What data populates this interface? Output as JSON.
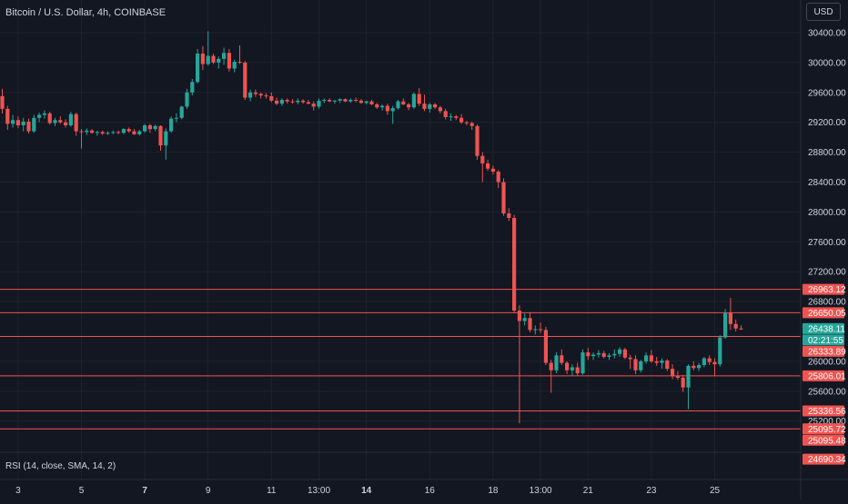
{
  "header": {
    "symbol": "Bitcoin / U.S. Dollar, 4h, COINBASE",
    "currency": "USD"
  },
  "indicator": {
    "label": "RSI (14, close, SMA, 14, 2)"
  },
  "colors": {
    "background": "#131722",
    "grid": "#1e222d",
    "up": "#26a69a",
    "down": "#ef5350",
    "level_line": "#ef5350",
    "current_badge": "#26a69a",
    "axis_text": "#d1d4dc"
  },
  "chart_data": {
    "type": "candlestick",
    "title": "Bitcoin / U.S. Dollar, 4h, COINBASE",
    "y_axis": {
      "ticks": [
        30400,
        30000,
        29600,
        29200,
        28800,
        28400,
        28000,
        27600,
        27200,
        26800,
        26000,
        25600,
        25200
      ],
      "range": [
        24600,
        30700
      ]
    },
    "x_axis": {
      "ticks": [
        {
          "label": "3",
          "index": 3
        },
        {
          "label": "5",
          "index": 15
        },
        {
          "label": "7",
          "index": 27,
          "bold": true
        },
        {
          "label": "9",
          "index": 39
        },
        {
          "label": "11",
          "index": 51
        },
        {
          "label": "13:00",
          "index": 60
        },
        {
          "label": "14",
          "index": 69,
          "bold": true
        },
        {
          "label": "16",
          "index": 81
        },
        {
          "label": "18",
          "index": 93
        },
        {
          "label": "13:00",
          "index": 102
        },
        {
          "label": "21",
          "index": 111
        },
        {
          "label": "23",
          "index": 123
        },
        {
          "label": "25",
          "index": 135
        }
      ]
    },
    "levels": [
      26963.12,
      26650.05,
      26333.89,
      25806.01,
      25336.56,
      25095.72
    ],
    "price_badges": [
      {
        "label": "26963.12",
        "value": 26963.12,
        "kind": "level"
      },
      {
        "label": "26650.05",
        "value": 26650.05,
        "kind": "level"
      },
      {
        "label": "26438.11",
        "value": 26438.11,
        "kind": "current"
      },
      {
        "label": "02:21:55",
        "value": 26438.11,
        "kind": "countdown"
      },
      {
        "label": "26333.89",
        "value": 26333.89,
        "kind": "level"
      },
      {
        "label": "25806.01",
        "value": 25806.01,
        "kind": "level"
      },
      {
        "label": "25336.56",
        "value": 25336.56,
        "kind": "level"
      },
      {
        "label": "25095.72",
        "value": 25095.72,
        "kind": "level"
      },
      {
        "label": "25095.48",
        "value": 25095.48,
        "kind": "level"
      },
      {
        "label": "24690.34",
        "value": 24690.34,
        "kind": "level"
      }
    ],
    "candles": [
      [
        29550,
        29650,
        29320,
        29380
      ],
      [
        29380,
        29420,
        29100,
        29180
      ],
      [
        29180,
        29300,
        29130,
        29230
      ],
      [
        29230,
        29280,
        29120,
        29160
      ],
      [
        29160,
        29260,
        29080,
        29210
      ],
      [
        29210,
        29250,
        29050,
        29080
      ],
      [
        29080,
        29300,
        29060,
        29260
      ],
      [
        29260,
        29330,
        29200,
        29300
      ],
      [
        29300,
        29360,
        29250,
        29320
      ],
      [
        29320,
        29340,
        29170,
        29190
      ],
      [
        29190,
        29260,
        29150,
        29230
      ],
      [
        29230,
        29280,
        29180,
        29200
      ],
      [
        29200,
        29240,
        29130,
        29160
      ],
      [
        29160,
        29340,
        29140,
        29310
      ],
      [
        29310,
        29330,
        29020,
        29080
      ],
      [
        29080,
        29110,
        28850,
        29070
      ],
      [
        29070,
        29120,
        29030,
        29090
      ],
      [
        29090,
        29110,
        29050,
        29060
      ],
      [
        29060,
        29090,
        29020,
        29070
      ],
      [
        29070,
        29090,
        29030,
        29050
      ],
      [
        29050,
        29080,
        29030,
        29060
      ],
      [
        29060,
        29090,
        29040,
        29070
      ],
      [
        29070,
        29090,
        29040,
        29060
      ],
      [
        29060,
        29120,
        29040,
        29110
      ],
      [
        29110,
        29130,
        29060,
        29080
      ],
      [
        29080,
        29110,
        29030,
        29040
      ],
      [
        29040,
        29100,
        29020,
        29080
      ],
      [
        29080,
        29180,
        29060,
        29160
      ],
      [
        29160,
        29180,
        29060,
        29110
      ],
      [
        29110,
        29170,
        29080,
        29150
      ],
      [
        29150,
        29160,
        28820,
        28890
      ],
      [
        28890,
        29120,
        28700,
        29080
      ],
      [
        29080,
        29280,
        29060,
        29250
      ],
      [
        29250,
        29320,
        29200,
        29260
      ],
      [
        29260,
        29420,
        29240,
        29410
      ],
      [
        29410,
        29650,
        29380,
        29600
      ],
      [
        29600,
        29780,
        29560,
        29740
      ],
      [
        29740,
        30180,
        29720,
        30120
      ],
      [
        30120,
        30220,
        29900,
        29980
      ],
      [
        29980,
        30420,
        29960,
        30090
      ],
      [
        30090,
        30120,
        29980,
        30000
      ],
      [
        30000,
        30080,
        29920,
        30050
      ],
      [
        30050,
        30200,
        29970,
        30130
      ],
      [
        30130,
        30180,
        29880,
        29920
      ],
      [
        29920,
        30040,
        29870,
        30010
      ],
      [
        30010,
        30230,
        29980,
        30000
      ],
      [
        30000,
        30020,
        29500,
        29530
      ],
      [
        29530,
        29640,
        29480,
        29600
      ],
      [
        29600,
        29640,
        29540,
        29580
      ],
      [
        29580,
        29600,
        29520,
        29560
      ],
      [
        29560,
        29590,
        29520,
        29550
      ],
      [
        29550,
        29600,
        29470,
        29490
      ],
      [
        29490,
        29530,
        29430,
        29450
      ],
      [
        29450,
        29520,
        29420,
        29500
      ],
      [
        29500,
        29520,
        29450,
        29480
      ],
      [
        29480,
        29510,
        29450,
        29470
      ],
      [
        29470,
        29520,
        29440,
        29490
      ],
      [
        29490,
        29510,
        29450,
        29470
      ],
      [
        29470,
        29500,
        29440,
        29450
      ],
      [
        29450,
        29480,
        29360,
        29410
      ],
      [
        29410,
        29520,
        29380,
        29490
      ],
      [
        29490,
        29520,
        29460,
        29500
      ],
      [
        29500,
        29520,
        29470,
        29480
      ],
      [
        29480,
        29500,
        29450,
        29490
      ],
      [
        29490,
        29520,
        29460,
        29510
      ],
      [
        29510,
        29520,
        29470,
        29480
      ],
      [
        29480,
        29520,
        29460,
        29500
      ],
      [
        29500,
        29530,
        29470,
        29490
      ],
      [
        29490,
        29510,
        29450,
        29460
      ],
      [
        29460,
        29490,
        29440,
        29480
      ],
      [
        29480,
        29500,
        29430,
        29440
      ],
      [
        29440,
        29460,
        29380,
        29400
      ],
      [
        29400,
        29440,
        29360,
        29420
      ],
      [
        29420,
        29450,
        29300,
        29350
      ],
      [
        29350,
        29420,
        29180,
        29390
      ],
      [
        29390,
        29500,
        29370,
        29480
      ],
      [
        29480,
        29520,
        29430,
        29440
      ],
      [
        29440,
        29460,
        29360,
        29400
      ],
      [
        29400,
        29600,
        29380,
        29580
      ],
      [
        29580,
        29660,
        29420,
        29450
      ],
      [
        29450,
        29570,
        29350,
        29380
      ],
      [
        29380,
        29460,
        29330,
        29440
      ],
      [
        29440,
        29460,
        29380,
        29400
      ],
      [
        29400,
        29420,
        29320,
        29350
      ],
      [
        29350,
        29380,
        29240,
        29270
      ],
      [
        29270,
        29320,
        29220,
        29280
      ],
      [
        29280,
        29300,
        29230,
        29260
      ],
      [
        29260,
        29310,
        29180,
        29200
      ],
      [
        29200,
        29220,
        29160,
        29190
      ],
      [
        29190,
        29210,
        29100,
        29150
      ],
      [
        29150,
        29170,
        28700,
        28750
      ],
      [
        28750,
        28800,
        28400,
        28650
      ],
      [
        28650,
        28700,
        28550,
        28580
      ],
      [
        28580,
        28620,
        28500,
        28540
      ],
      [
        28540,
        28560,
        28320,
        28400
      ],
      [
        28400,
        28450,
        27950,
        27980
      ],
      [
        27980,
        28050,
        27880,
        27920
      ],
      [
        27920,
        27960,
        26650,
        26680
      ],
      [
        26680,
        26750,
        25170,
        26540
      ],
      [
        26540,
        26640,
        26480,
        26580
      ],
      [
        26580,
        26660,
        26390,
        26420
      ],
      [
        26420,
        26480,
        26360,
        26430
      ],
      [
        26430,
        26520,
        26380,
        26420
      ],
      [
        26420,
        26460,
        25950,
        25980
      ],
      [
        25980,
        26020,
        25580,
        25880
      ],
      [
        25880,
        26120,
        25840,
        26080
      ],
      [
        26080,
        26160,
        25950,
        25980
      ],
      [
        25980,
        26000,
        25830,
        25880
      ],
      [
        25880,
        25960,
        25800,
        25920
      ],
      [
        25920,
        25980,
        25800,
        25840
      ],
      [
        25840,
        26160,
        25820,
        26120
      ],
      [
        26120,
        26180,
        26020,
        26070
      ],
      [
        26070,
        26120,
        26020,
        26090
      ],
      [
        26090,
        26150,
        26050,
        26110
      ],
      [
        26110,
        26140,
        26040,
        26060
      ],
      [
        26060,
        26110,
        26020,
        26080
      ],
      [
        26080,
        26160,
        26040,
        26100
      ],
      [
        26100,
        26190,
        26060,
        26160
      ],
      [
        26160,
        26180,
        26030,
        26050
      ],
      [
        26050,
        26090,
        25900,
        26030
      ],
      [
        26030,
        26080,
        25830,
        25880
      ],
      [
        25880,
        26020,
        25850,
        26000
      ],
      [
        26000,
        26120,
        25970,
        26080
      ],
      [
        26080,
        26150,
        25980,
        26000
      ],
      [
        26000,
        26060,
        25940,
        25980
      ],
      [
        25980,
        26040,
        25900,
        26010
      ],
      [
        26010,
        26030,
        25870,
        25900
      ],
      [
        25900,
        25960,
        25760,
        25800
      ],
      [
        25800,
        25870,
        25750,
        25780
      ],
      [
        25780,
        25820,
        25590,
        25650
      ],
      [
        25650,
        25960,
        25360,
        25940
      ],
      [
        25940,
        26000,
        25880,
        25910
      ],
      [
        25910,
        25980,
        25870,
        25950
      ],
      [
        25950,
        26060,
        25920,
        26040
      ],
      [
        26040,
        26080,
        25950,
        25990
      ],
      [
        25990,
        26040,
        25810,
        25960
      ],
      [
        25960,
        26350,
        25930,
        26320
      ],
      [
        26320,
        26700,
        26300,
        26650
      ],
      [
        26650,
        26850,
        26420,
        26500
      ],
      [
        26500,
        26560,
        26400,
        26440
      ],
      [
        26440,
        26480,
        26420,
        26438
      ]
    ]
  }
}
